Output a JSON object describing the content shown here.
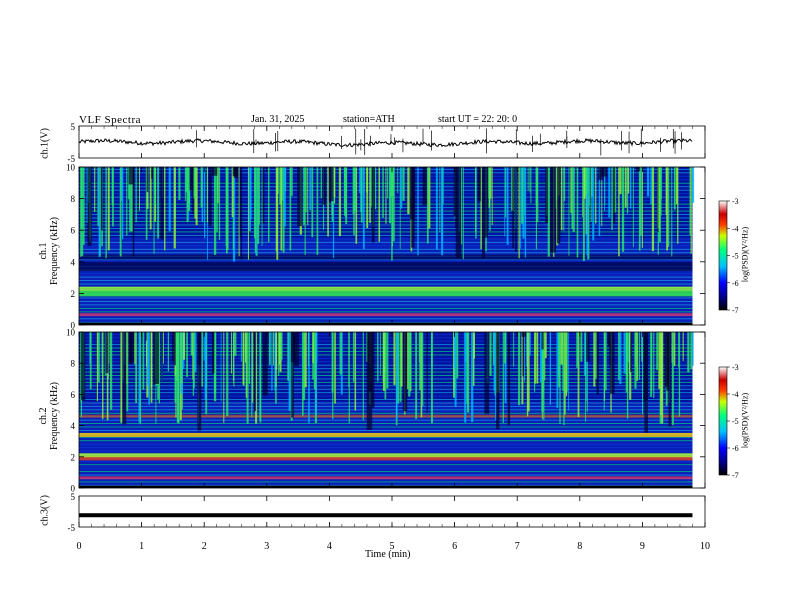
{
  "header": {
    "title": "VLF  Spectra",
    "date": "Jan. 31, 2025",
    "station": "station=ATH",
    "start": "start  UT  =  22: 20: 0"
  },
  "chart_data": [
    {
      "panel": "ch.1 waveform",
      "type": "line",
      "ylabel": "ch.1(V)",
      "yticks": [
        "5",
        "-5"
      ],
      "ylim": [
        -5,
        5
      ],
      "xlim": [
        0,
        10
      ],
      "data_extent_min": 9.8,
      "description_values": {
        "baseline": 0.0,
        "noise_amplitude": 1.2
      }
    },
    {
      "panel": "ch.1 spectrogram",
      "type": "heatmap",
      "ylabel": "ch.1\nFrequency (kHz)",
      "ylabel_line1": "ch.1",
      "ylabel_line2": "Frequency  (kHz)",
      "yticks": [
        "0",
        "2",
        "4",
        "6",
        "8",
        "10"
      ],
      "ylim": [
        0,
        10
      ],
      "xlim": [
        0,
        10
      ],
      "colorbar": {
        "label": "log(PSD)(V²/Hz)",
        "ticks": [
          "-3",
          "-4",
          "-5",
          "-6",
          "-7"
        ],
        "range": [
          -7,
          -3
        ]
      },
      "bands_khz": [
        2.0,
        2.3,
        3.7,
        4.3
      ],
      "sferic_band_khz": [
        5.5,
        10
      ]
    },
    {
      "panel": "ch.2 spectrogram",
      "type": "heatmap",
      "ylabel_line1": "ch.2",
      "ylabel_line2": "Frequency  (kHz)",
      "yticks": [
        "0",
        "2",
        "4",
        "6",
        "8",
        "10"
      ],
      "ylim": [
        0,
        10
      ],
      "xlim": [
        0,
        10
      ],
      "colorbar": {
        "label": "log(PSD)(V²/Hz)",
        "ticks": [
          "-3",
          "-4",
          "-5",
          "-6",
          "-7"
        ],
        "range": [
          -7,
          -3
        ]
      },
      "bands_khz": [
        1.9,
        2.1,
        3.4,
        4.6
      ]
    },
    {
      "panel": "ch.3 waveform",
      "type": "line",
      "ylabel": "ch.3(V)",
      "yticks": [
        "5",
        "-5"
      ],
      "ylim": [
        -5,
        5
      ],
      "xlim": [
        0,
        10
      ],
      "level": -1.2
    }
  ],
  "xaxis": {
    "label": "Time  (min)",
    "ticks": [
      "0",
      "1",
      "2",
      "3",
      "4",
      "5",
      "6",
      "7",
      "8",
      "9",
      "10"
    ],
    "range": [
      0,
      10
    ]
  }
}
